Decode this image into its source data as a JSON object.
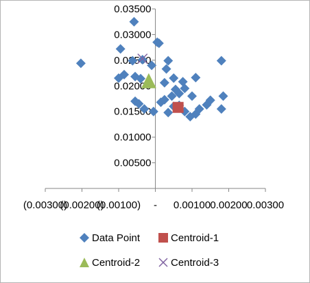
{
  "chart_data": {
    "type": "scatter",
    "title": "",
    "xlabel": "",
    "ylabel": "",
    "xlim": [
      -0.003,
      0.003
    ],
    "ylim": [
      0,
      0.035
    ],
    "x_ticks": [
      -0.003,
      -0.002,
      -0.001,
      0,
      0.001,
      0.002,
      0.003
    ],
    "x_tick_labels": [
      "(0.00300)",
      "(0.00200)",
      "(0.00100)",
      "-",
      "0.00100",
      "0.00200",
      "0.00300"
    ],
    "y_ticks": [
      0.005,
      0.01,
      0.015,
      0.02,
      0.025,
      0.03,
      0.035
    ],
    "y_tick_labels": [
      "0.00500",
      "0.01000",
      "0.01500",
      "0.02000",
      "0.02500",
      "0.03000",
      "0.03500"
    ],
    "grid": false,
    "legend_position": "bottom",
    "series": [
      {
        "name": "Data Point",
        "marker": "diamond",
        "color": "#4f81bd",
        "points": [
          [
            -0.00058,
            0.0325
          ],
          [
            -0.00095,
            0.0272
          ],
          [
            -0.00203,
            0.0244
          ],
          [
            -0.00062,
            0.0249
          ],
          [
            -0.00035,
            0.0251
          ],
          [
            -0.001,
            0.0215
          ],
          [
            -0.00085,
            0.0222
          ],
          [
            -0.00055,
            0.0218
          ],
          [
            -0.0004,
            0.0214
          ],
          [
            -0.0002,
            0.0205
          ],
          [
            -0.0001,
            0.024
          ],
          [
            -0.00055,
            0.017
          ],
          [
            -0.00045,
            0.0165
          ],
          [
            -0.0003,
            0.0155
          ],
          [
            -5e-05,
            0.015
          ],
          [
            5e-05,
            0.0285
          ],
          [
            0.0001,
            0.0283
          ],
          [
            0.00035,
            0.0249
          ],
          [
            0.0003,
            0.0233
          ],
          [
            0.00025,
            0.0206
          ],
          [
            0.0005,
            0.0215
          ],
          [
            0.00015,
            0.0168
          ],
          [
            0.00025,
            0.0173
          ],
          [
            0.00045,
            0.018
          ],
          [
            0.00055,
            0.0193
          ],
          [
            0.00065,
            0.0185
          ],
          [
            0.00075,
            0.0208
          ],
          [
            0.0008,
            0.0195
          ],
          [
            0.00035,
            0.0148
          ],
          [
            0.0005,
            0.016
          ],
          [
            0.00065,
            0.0162
          ],
          [
            0.0008,
            0.015
          ],
          [
            0.00095,
            0.014
          ],
          [
            0.001,
            0.018
          ],
          [
            0.0011,
            0.0216
          ],
          [
            0.0012,
            0.0155
          ],
          [
            0.0014,
            0.0163
          ],
          [
            0.0015,
            0.0172
          ],
          [
            0.0018,
            0.0249
          ],
          [
            0.00185,
            0.018
          ],
          [
            0.0018,
            0.0155
          ],
          [
            0.0011,
            0.0145
          ]
        ]
      },
      {
        "name": "Centroid-1",
        "marker": "square",
        "color": "#c0504d",
        "points": [
          [
            0.00062,
            0.0158
          ]
        ]
      },
      {
        "name": "Centroid-2",
        "marker": "triangle",
        "color": "#9bbb59",
        "points": [
          [
            -0.00018,
            0.021
          ]
        ]
      },
      {
        "name": "Centroid-3",
        "marker": "x",
        "color": "#8064a2",
        "points": [
          [
            -0.00035,
            0.0253
          ]
        ]
      }
    ]
  }
}
